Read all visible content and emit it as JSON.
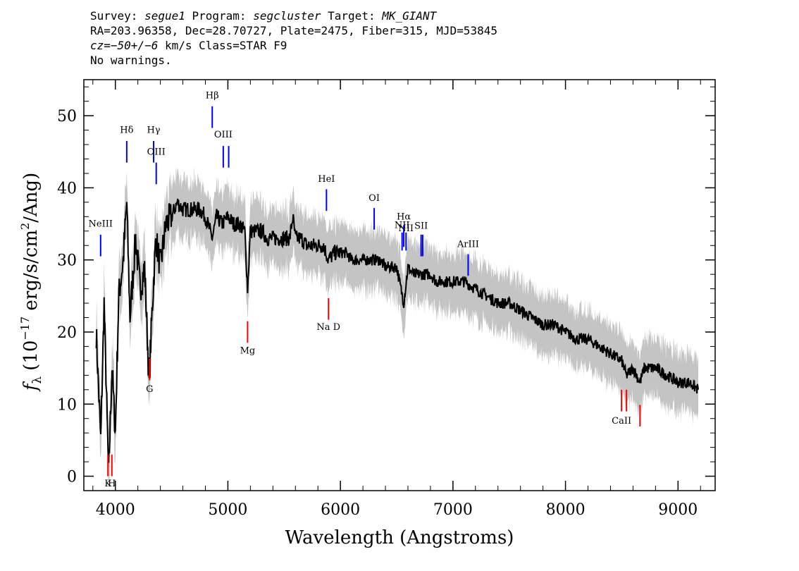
{
  "header": {
    "line1": {
      "survey_label": "Survey: ",
      "survey_value": "segue1",
      "program_label": " Program: ",
      "program_value": "segcluster",
      "target_label": " Target: ",
      "target_value": "MK_GIANT"
    },
    "line2": "RA=203.96358, Dec=28.70727, Plate=2475, Fiber=315, MJD=53845",
    "line3": {
      "cz_value": "cz=−50+/−6",
      "cz_rest": " km/s Class=STAR F9"
    },
    "line4": "No warnings."
  },
  "chart_data": {
    "type": "line",
    "xlabel": "Wavelength (Angstroms)",
    "ylabel": "f_λ (10^-17 erg/s/cm^2/Ang)",
    "ylabel_parts": {
      "f": "f",
      "sub": "λ",
      "pre": "(10",
      "exp1": "−17",
      "mid": " erg/s/cm",
      "exp2": "2",
      "post": "/Ang)"
    },
    "xlim": [
      3720,
      9330
    ],
    "ylim": [
      -2,
      55
    ],
    "xticks": [
      4000,
      5000,
      6000,
      7000,
      8000,
      9000
    ],
    "yticks": [
      0,
      10,
      20,
      30,
      40,
      50
    ],
    "series": [
      {
        "role": "flux",
        "color": "#000000",
        "x": [
          3830,
          3870,
          3900,
          3940,
          3970,
          4000,
          4030,
          4070,
          4101,
          4130,
          4180,
          4220,
          4260,
          4300,
          4330,
          4360,
          4400,
          4450,
          4500,
          4550,
          4600,
          4650,
          4700,
          4750,
          4800,
          4861,
          4900,
          4950,
          5000,
          5050,
          5100,
          5150,
          5175,
          5200,
          5250,
          5300,
          5350,
          5400,
          5450,
          5500,
          5550,
          5577,
          5600,
          5650,
          5700,
          5750,
          5800,
          5850,
          5893,
          5950,
          6000,
          6050,
          6100,
          6150,
          6200,
          6250,
          6300,
          6350,
          6400,
          6450,
          6500,
          6563,
          6600,
          6650,
          6700,
          6750,
          6800,
          6850,
          6900,
          6950,
          7000,
          7100,
          7200,
          7300,
          7400,
          7500,
          7600,
          7700,
          7800,
          7900,
          8000,
          8100,
          8200,
          8300,
          8400,
          8500,
          8542,
          8600,
          8662,
          8700,
          8800,
          8900,
          9000,
          9100,
          9180
        ],
        "y": [
          20,
          5,
          24,
          0,
          15,
          6,
          25,
          30,
          38,
          22,
          33,
          26,
          29,
          13,
          24,
          33,
          29,
          35,
          36,
          38,
          37,
          37,
          37,
          37,
          36,
          33,
          36,
          35,
          36,
          35,
          35,
          34,
          26,
          34,
          34,
          34,
          33,
          33,
          33,
          33,
          33,
          36,
          33,
          33,
          32,
          32,
          32,
          32,
          30,
          31,
          31,
          31,
          30,
          30,
          30,
          30,
          30,
          30,
          29,
          29,
          29,
          24,
          29,
          28,
          28,
          28,
          28,
          27,
          27,
          27,
          27,
          27,
          26,
          25,
          24,
          24,
          23,
          22,
          21,
          21,
          20,
          19,
          19,
          18,
          17,
          16,
          14,
          15,
          13,
          15,
          15,
          14,
          13,
          13,
          12
        ]
      },
      {
        "role": "error-band",
        "color": "#c4c4c4",
        "width": 3.0
      }
    ],
    "emission_lines": [
      {
        "name": "NeIII",
        "wave": 3869,
        "y0": 30.5,
        "y1": 33.5,
        "label_y": 34.6
      },
      {
        "name": "Hδ",
        "wave": 4101,
        "y0": 43.5,
        "y1": 46.5,
        "label_y": 47.6
      },
      {
        "name": "Hγ",
        "wave": 4340,
        "y0": 43.5,
        "y1": 46.5,
        "label_y": 47.6
      },
      {
        "name": "OIII",
        "wave": 4363,
        "y0": 40.5,
        "y1": 43.5,
        "label_y": 44.6
      },
      {
        "name": "Hβ",
        "wave": 4861,
        "y0": 48.3,
        "y1": 51.3,
        "label_y": 52.4
      },
      {
        "name": "OIII",
        "wave": 4959,
        "y0": 42.8,
        "y1": 45.8,
        "label_y": 47.0
      },
      {
        "name": "OIII",
        "wave": 5007,
        "y0": 42.8,
        "y1": 45.8,
        "label_y": 47.0
      },
      {
        "name": "HeI",
        "wave": 5876,
        "y0": 36.8,
        "y1": 39.8,
        "label_y": 40.8
      },
      {
        "name": "OI",
        "wave": 6300,
        "y0": 34.2,
        "y1": 37.2,
        "label_y": 38.2
      },
      {
        "name": "NII",
        "wave": 6548,
        "y0": 31.3,
        "y1": 33.8,
        "label_y": 34.4
      },
      {
        "name": "Hα",
        "wave": 6563,
        "y0": 31.8,
        "y1": 34.8,
        "label_y": 35.6
      },
      {
        "name": "NII",
        "wave": 6583,
        "y0": 31.3,
        "y1": 33.8,
        "label_y": 34.0
      },
      {
        "name": "SII",
        "wave": 6717,
        "y0": 30.5,
        "y1": 33.5,
        "label_y": 34.3
      },
      {
        "name": "SII",
        "wave": 6731,
        "y0": 30.5,
        "y1": 33.5,
        "label_y": 34.3
      },
      {
        "name": "ArIII",
        "wave": 7135,
        "y0": 27.8,
        "y1": 30.8,
        "label_y": 31.8
      }
    ],
    "absorption_lines": [
      {
        "name": "K",
        "wave": 3934,
        "y0": 0,
        "y1": 3,
        "label_y": -1.4
      },
      {
        "name": "H",
        "wave": 3969,
        "y0": 0,
        "y1": 3,
        "label_y": -1.4
      },
      {
        "name": "G",
        "wave": 4304,
        "y0": 13.3,
        "y1": 16.3,
        "label_y": 11.7
      },
      {
        "name": "Mg",
        "wave": 5175,
        "y0": 18.5,
        "y1": 21.5,
        "label_y": 17.0
      },
      {
        "name": "Na D",
        "wave": 5894,
        "y0": 21.7,
        "y1": 24.7,
        "label_y": 20.3
      },
      {
        "name": "CaII",
        "wave": 8498,
        "y0": 9.0,
        "y1": 12.0,
        "label_y": 7.3
      },
      {
        "name": "CaII",
        "wave": 8542,
        "y0": 9.0,
        "y1": 12.0,
        "label_y": 7.3
      },
      {
        "name": "CaII",
        "wave": 8662,
        "y0": 6.9,
        "y1": 9.9,
        "label_y": 7.3
      }
    ],
    "label_text": {
      "K": "K",
      "H": "H",
      "CaII": "CaII"
    },
    "colors": {
      "emission": "#0000ff",
      "absorption": "#ff0000",
      "axes": "#000000"
    }
  }
}
